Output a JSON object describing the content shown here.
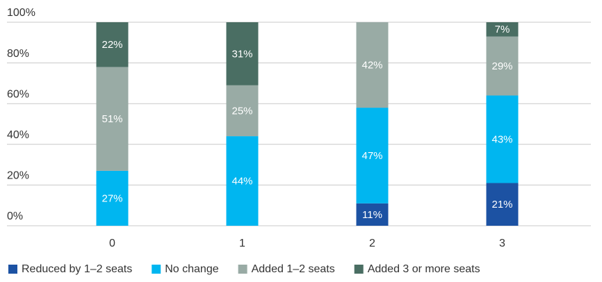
{
  "chart_data": {
    "type": "stacked-bar",
    "categories": [
      "0",
      "1",
      "2",
      "3"
    ],
    "series": [
      {
        "name": "Reduced by 1–2 seats",
        "color": "#1c52a3",
        "values": [
          null,
          null,
          11,
          21
        ],
        "value_labels": [
          null,
          null,
          "11%",
          "21%"
        ]
      },
      {
        "name": "No change",
        "color": "#00b6f0",
        "values": [
          27,
          44,
          47,
          43
        ],
        "value_labels": [
          "27%",
          "44%",
          "47%",
          "43%"
        ]
      },
      {
        "name": "Added 1–2 seats",
        "color": "#99aba5",
        "values": [
          51,
          25,
          42,
          29
        ],
        "value_labels": [
          "51%",
          "25%",
          "42%",
          "29%"
        ]
      },
      {
        "name": "Added 3 or more seats",
        "color": "#4a6e63",
        "values": [
          22,
          31,
          null,
          7
        ],
        "value_labels": [
          "22%",
          "31%",
          null,
          "7%"
        ]
      }
    ],
    "ylim": [
      0,
      100
    ],
    "yticks": [
      {
        "value": 0,
        "label": "0%"
      },
      {
        "value": 20,
        "label": "20%"
      },
      {
        "value": 40,
        "label": "40%"
      },
      {
        "value": 60,
        "label": "60%"
      },
      {
        "value": 80,
        "label": "80%"
      },
      {
        "value": 100,
        "label": "100%"
      }
    ],
    "grid": true
  }
}
